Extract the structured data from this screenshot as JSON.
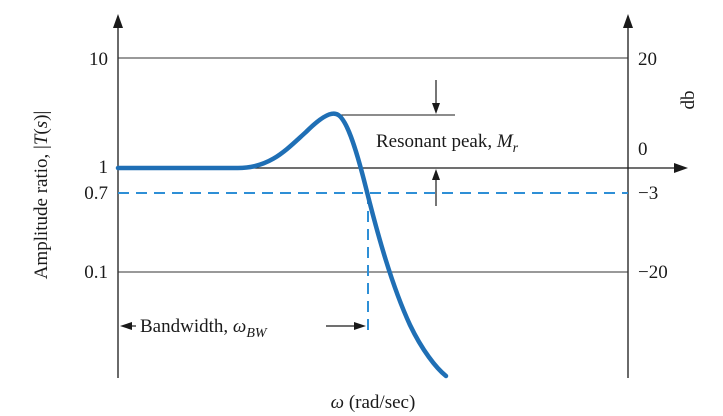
{
  "y_left_label": {
    "main": "Amplitude ratio, |",
    "var": "T",
    "paren": "(",
    "s": "s",
    "end": ")|"
  },
  "y_right_label": "db",
  "x_label": {
    "omega": "ω",
    "unit": " (rad/sec)"
  },
  "left_ticks": [
    "10",
    "1",
    "0.7",
    "0.1"
  ],
  "right_ticks": [
    "20",
    "0",
    "−3",
    "−20"
  ],
  "resonant_peak": {
    "text": "Resonant peak, ",
    "sym": "M",
    "sub": "r"
  },
  "bandwidth": {
    "text": "Bandwidth, ",
    "sym": "ω",
    "sub": "BW"
  },
  "colors": {
    "curve": "#1f6fb5",
    "dashed": "#2e8fd6",
    "axis": "#1a1a1a",
    "grid": "#333333"
  }
}
